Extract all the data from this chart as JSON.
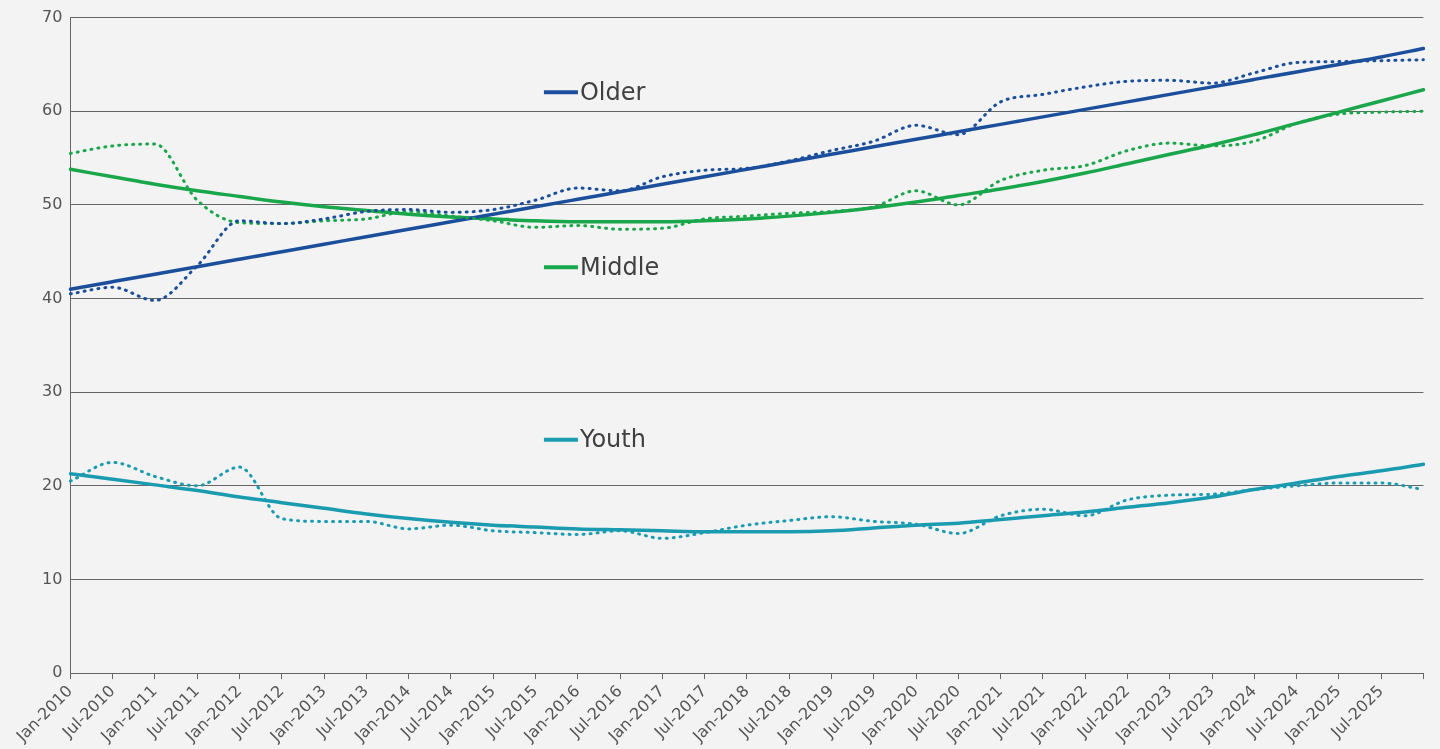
{
  "chart_data": {
    "type": "line",
    "categories": [
      "Jan-2010",
      "Jul-2010",
      "Jan-2011",
      "Jul-2011",
      "Jan-2012",
      "Jul-2012",
      "Jan-2013",
      "Jul-2013",
      "Jan-2014",
      "Jul-2014",
      "Jan-2015",
      "Jul-2015",
      "Jan-2016",
      "Jul-2016",
      "Jan-2017",
      "Jul-2017",
      "Jan-2018",
      "Jul-2018",
      "Jan-2019",
      "Jul-2019",
      "Jan-2020",
      "Jul-2020",
      "Jan-2021",
      "Jul-2021",
      "Jan-2022",
      "Jul-2022",
      "Jan-2023",
      "Jul-2023",
      "Jan-2024",
      "Jul-2024",
      "Jan-2025",
      "Jul-2025",
      null
    ],
    "ylim": [
      0,
      70
    ],
    "yticks": [
      0,
      10,
      20,
      30,
      40,
      50,
      60,
      70
    ],
    "grid": "y",
    "marker": "none",
    "legend": "top",
    "series": [
      {
        "color": "#1b4f9c",
        "line_style": "dotted",
        "values": [
          40.5,
          41.2,
          39.8,
          43.5,
          48.3,
          48,
          48.5,
          49.3,
          49.5,
          49.2,
          49.5,
          50.5,
          51.8,
          51.5,
          53,
          53.7,
          53.9,
          54.7,
          55.8,
          56.8,
          58.5,
          57.5,
          61,
          61.8,
          62.6,
          63.2,
          63.3,
          63,
          64.1,
          65.2,
          65.3,
          65.4,
          65.5
        ]
      },
      {
        "color": "#1aa64a",
        "line_style": "dotted",
        "values": [
          55.5,
          56.3,
          56.5,
          50.5,
          48.1,
          48,
          48.3,
          48.5,
          49.3,
          48.8,
          48.3,
          47.6,
          47.8,
          47.4,
          47.5,
          48.5,
          48.8,
          49.1,
          49.3,
          49.8,
          51.5,
          50,
          52.6,
          53.7,
          54.2,
          55.8,
          56.6,
          56.3,
          56.8,
          58.7,
          59.7,
          59.9,
          60
        ]
      },
      {
        "color": "#1a9bb0",
        "line_style": "dotted",
        "values": [
          20.5,
          22.5,
          21,
          20,
          22,
          16.5,
          16.2,
          16.2,
          15.4,
          15.8,
          15.2,
          15,
          14.8,
          15.2,
          14.4,
          15,
          15.8,
          16.3,
          16.7,
          16.2,
          15.9,
          14.9,
          16.8,
          17.5,
          16.8,
          18.5,
          19,
          19.1,
          19.6,
          20,
          20.3,
          20.3,
          19.6
        ]
      },
      {
        "name": "Older",
        "color": "#1b4f9c",
        "line_style": "solid",
        "values": [
          41,
          41.8,
          42.6,
          43.4,
          44.2,
          45,
          45.8,
          46.6,
          47.4,
          48.2,
          49,
          49.8,
          50.6,
          51.4,
          52.2,
          53,
          53.8,
          54.6,
          55.4,
          56.2,
          57,
          57.8,
          58.6,
          59.4,
          60.2,
          61,
          61.8,
          62.6,
          63.4,
          64.2,
          65,
          65.8,
          66.7
        ]
      },
      {
        "name": "Middle",
        "color": "#1aa64a",
        "line_style": "solid",
        "values": [
          53.8,
          53,
          52.2,
          51.5,
          50.9,
          50.3,
          49.8,
          49.4,
          49,
          48.7,
          48.5,
          48.3,
          48.2,
          48.2,
          48.2,
          48.3,
          48.5,
          48.8,
          49.2,
          49.7,
          50.3,
          51,
          51.7,
          52.5,
          53.4,
          54.4,
          55.4,
          56.4,
          57.5,
          58.7,
          59.9,
          61.1,
          62.3
        ]
      },
      {
        "name": "Youth",
        "color": "#1a9bb0",
        "line_style": "solid",
        "values": [
          21.3,
          20.7,
          20.1,
          19.5,
          18.8,
          18.2,
          17.6,
          17,
          16.5,
          16.1,
          15.8,
          15.6,
          15.4,
          15.3,
          15.2,
          15.1,
          15.1,
          15.1,
          15.2,
          15.5,
          15.8,
          16,
          16.4,
          16.8,
          17.2,
          17.7,
          18.2,
          18.8,
          19.6,
          20.3,
          21,
          21.6,
          22.3
        ]
      }
    ]
  }
}
